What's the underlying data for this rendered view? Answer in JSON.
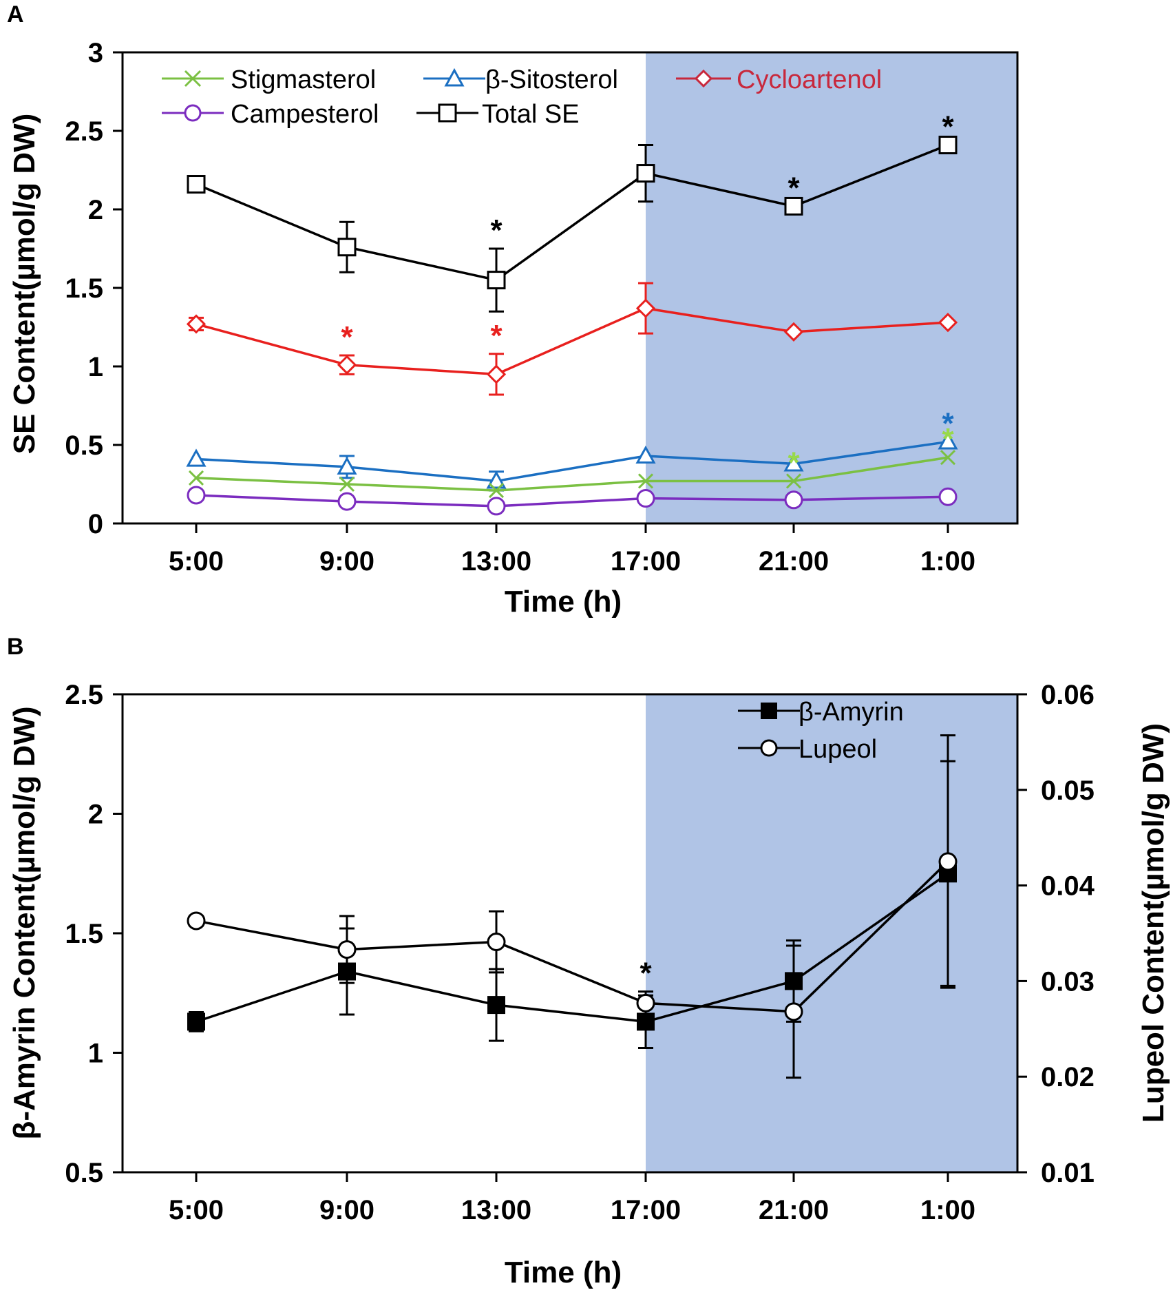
{
  "panel_labels": [
    "A",
    "B"
  ],
  "chart_data": [
    {
      "type": "line",
      "panel": "A",
      "title": "",
      "xlabel": "Time (h)",
      "ylabel": "SE Content(µmol/g DW)",
      "categories": [
        "5:00",
        "9:00",
        "13:00",
        "17:00",
        "21:00",
        "1:00"
      ],
      "ylim": [
        0,
        3
      ],
      "yticks": [
        "0",
        "0.5",
        "1",
        "1.5",
        "2",
        "2.5",
        "3"
      ],
      "dark_period_start": "17:00",
      "shade_color": "#b0c4e6",
      "legend": [
        "Stigmasterol",
        "β-Sitosterol",
        "Cycloartenol",
        "Campesterol",
        "Total SE"
      ],
      "series": [
        {
          "name": "Total SE",
          "color": "#000000",
          "marker": "square-open",
          "values": [
            2.16,
            1.76,
            1.55,
            2.23,
            2.02,
            2.41
          ],
          "errors": [
            0.0,
            0.16,
            0.2,
            0.18,
            0.0,
            0.0
          ],
          "significant": [
            false,
            false,
            true,
            false,
            true,
            true
          ]
        },
        {
          "name": "Cycloartenol",
          "color": "#e8201e",
          "legend_color": "#c8283c",
          "marker": "diamond-open",
          "values": [
            1.27,
            1.01,
            0.95,
            1.37,
            1.22,
            1.28
          ],
          "errors": [
            0.04,
            0.06,
            0.13,
            0.16,
            0.0,
            0.0
          ],
          "significant": [
            false,
            true,
            true,
            false,
            false,
            false
          ]
        },
        {
          "name": "β-Sitosterol",
          "color": "#1b6fc2",
          "marker": "triangle-open",
          "values": [
            0.41,
            0.36,
            0.27,
            0.43,
            0.38,
            0.52
          ],
          "errors": [
            0.0,
            0.07,
            0.06,
            0.0,
            0.0,
            0.0
          ],
          "significant": [
            false,
            false,
            false,
            false,
            false,
            true
          ]
        },
        {
          "name": "Stigmasterol",
          "color": "#7bc043",
          "star_color": "#98d94a",
          "marker": "x",
          "values": [
            0.29,
            0.25,
            0.21,
            0.27,
            0.27,
            0.42
          ],
          "errors": [
            0.0,
            0.0,
            0.0,
            0.0,
            0.0,
            0.0
          ],
          "significant": [
            false,
            false,
            false,
            false,
            true,
            true
          ]
        },
        {
          "name": "Campesterol",
          "color": "#7b2cbf",
          "marker": "circle-open",
          "values": [
            0.18,
            0.14,
            0.11,
            0.16,
            0.15,
            0.17
          ],
          "errors": [
            0.0,
            0.0,
            0.0,
            0.0,
            0.0,
            0.0
          ],
          "significant": [
            false,
            false,
            false,
            false,
            false,
            false
          ]
        }
      ]
    },
    {
      "type": "line",
      "panel": "B",
      "title": "",
      "xlabel": "Time (h)",
      "ylabel": "β-Amyrin Content(µmol/g DW)",
      "y2label": "Lupeol Content(µmol/g DW)",
      "categories": [
        "5:00",
        "9:00",
        "13:00",
        "17:00",
        "21:00",
        "1:00"
      ],
      "ylim": [
        0.5,
        2.5
      ],
      "yticks": [
        "0.5",
        "1",
        "1.5",
        "2",
        "2.5"
      ],
      "y2lim": [
        0.01,
        0.06
      ],
      "y2ticks": [
        "0.01",
        "0.02",
        "0.03",
        "0.04",
        "0.05",
        "0.06"
      ],
      "dark_period_start": "17:00",
      "shade_color": "#b0c4e6",
      "legend": [
        "β-Amyrin",
        "Lupeol"
      ],
      "series": [
        {
          "name": "β-Amyrin",
          "axis": "left",
          "color": "#000000",
          "marker": "square-filled",
          "values": [
            1.13,
            1.34,
            1.2,
            1.13,
            1.3,
            1.75
          ],
          "errors": [
            0.04,
            0.18,
            0.15,
            0.11,
            0.17,
            0.47
          ],
          "significant": [
            false,
            false,
            false,
            false,
            false,
            false
          ]
        },
        {
          "name": "Lupeol",
          "axis": "right",
          "color": "#000000",
          "marker": "circle-open",
          "values": [
            0.0363,
            0.0333,
            0.0341,
            0.0277,
            0.0268,
            0.0425
          ],
          "errors": [
            0.0005,
            0.0035,
            0.0032,
            0.0012,
            0.0069,
            0.0132
          ],
          "significant": [
            false,
            false,
            false,
            true,
            false,
            false
          ]
        }
      ]
    }
  ]
}
